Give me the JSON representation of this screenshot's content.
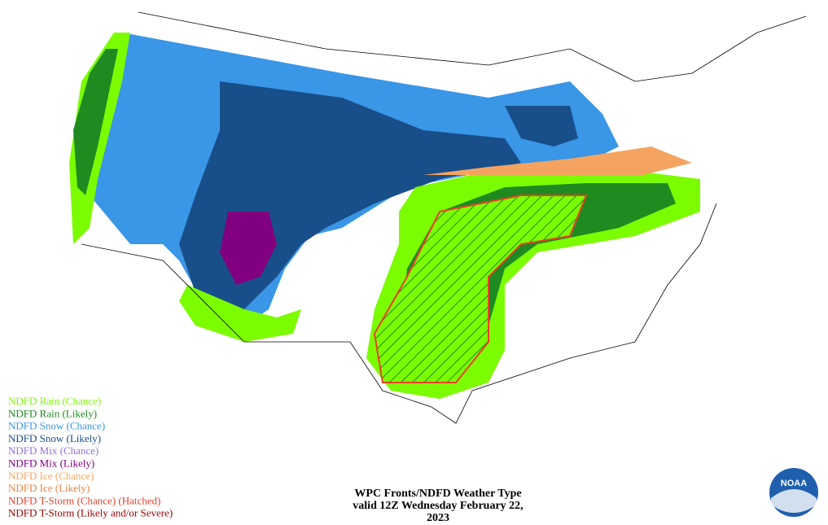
{
  "legend": [
    {
      "label": "NDFD Rain (Chance)",
      "color": "#7cfc00"
    },
    {
      "label": "NDFD Rain (Likely)",
      "color": "#1f8a1f"
    },
    {
      "label": "NDFD Snow (Chance)",
      "color": "#3a96e6"
    },
    {
      "label": "NDFD Snow (Likely)",
      "color": "#184e8a"
    },
    {
      "label": "NDFD Mix (Chance)",
      "color": "#9370db"
    },
    {
      "label": "NDFD Mix (Likely)",
      "color": "#800080"
    },
    {
      "label": "NDFD Ice (Chance)",
      "color": "#f4a460"
    },
    {
      "label": "NDFD Ice (Likely)",
      "color": "#e9843c"
    },
    {
      "label": "NDFD T-Storm (Chance) (Hatched)",
      "color": "#e8402a"
    },
    {
      "label": "NDFD T-Storm (Likely and/or Severe)",
      "color": "#9b0000"
    }
  ],
  "title": {
    "lines": [
      "WPC Fronts/NDFD Weather Type",
      "valid 12Z Wednesday February 22,",
      "2023"
    ]
  },
  "logo": "NOAA"
}
